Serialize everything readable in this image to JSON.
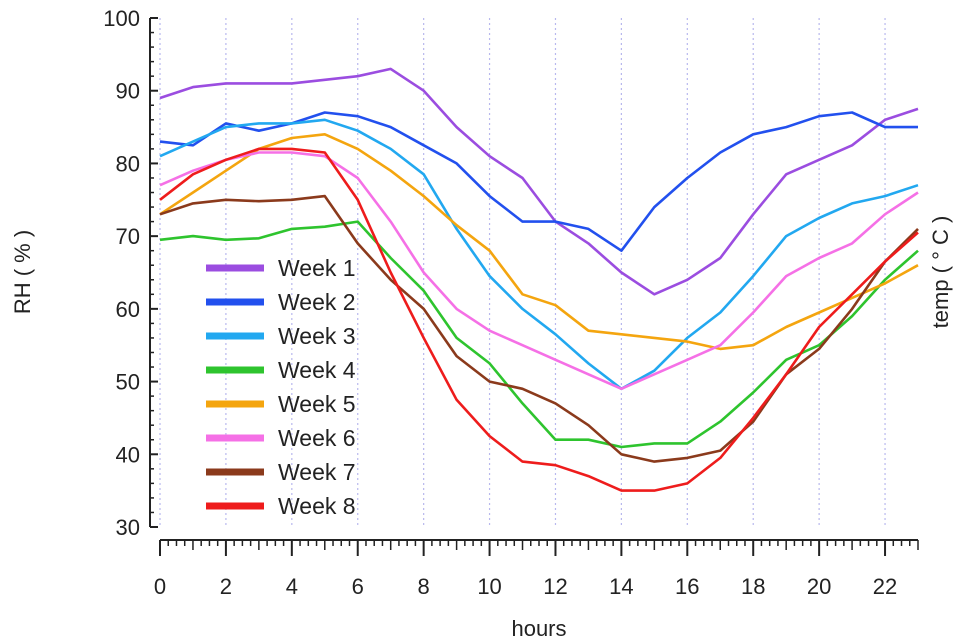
{
  "chart_data": {
    "type": "line",
    "title": "",
    "xlabel": "hours",
    "ylabel": "RH ( % )",
    "y2label": "temp ( ° C )",
    "xlim": [
      0,
      23
    ],
    "ylim": [
      30,
      100
    ],
    "xticks": [
      0,
      2,
      4,
      6,
      8,
      10,
      12,
      14,
      16,
      18,
      20,
      22
    ],
    "yticks": [
      30,
      40,
      50,
      60,
      70,
      80,
      90,
      100
    ],
    "grid": "vertical dotted",
    "legend_position": "bottom-left",
    "x": [
      0,
      1,
      2,
      3,
      4,
      5,
      6,
      7,
      8,
      9,
      10,
      11,
      12,
      13,
      14,
      15,
      16,
      17,
      18,
      19,
      20,
      21,
      22,
      23
    ],
    "series": [
      {
        "name": "Week 1",
        "color": "#9b4de0",
        "values": [
          89,
          90.5,
          91,
          91,
          91,
          91.5,
          92,
          93,
          90,
          85,
          81,
          78,
          72,
          69,
          65,
          62,
          64,
          67,
          73,
          78.5,
          80.5,
          82.5,
          86,
          87.5
        ]
      },
      {
        "name": "Week 2",
        "color": "#2250ee",
        "values": [
          83,
          82.5,
          85.5,
          84.5,
          85.5,
          87,
          86.5,
          85,
          82.5,
          80,
          75.5,
          72,
          72,
          71,
          68,
          74,
          78,
          81.5,
          84,
          85,
          86.5,
          87,
          85,
          85
        ]
      },
      {
        "name": "Week 3",
        "color": "#22a8f0",
        "values": [
          81,
          83,
          85,
          85.5,
          85.5,
          86,
          84.5,
          82,
          78.5,
          71,
          64.5,
          60,
          56.5,
          52.5,
          49,
          51.5,
          56,
          59.5,
          64.5,
          70,
          72.5,
          74.5,
          75.5,
          77
        ]
      },
      {
        "name": "Week 4",
        "color": "#2ec42e",
        "values": [
          69.5,
          70,
          69.5,
          69.7,
          71,
          71.3,
          72,
          67,
          62.5,
          56,
          52.5,
          47,
          42,
          42,
          41,
          41.5,
          41.5,
          44.5,
          48.5,
          53,
          55,
          59,
          64,
          68
        ]
      },
      {
        "name": "Week 5",
        "color": "#f4a50f",
        "values": [
          73,
          76,
          79,
          82,
          83.5,
          84,
          82,
          79,
          75.5,
          71.5,
          68,
          62,
          60.5,
          57,
          56.5,
          56,
          55.5,
          54.5,
          55,
          57.5,
          59.5,
          61.5,
          63.5,
          66
        ]
      },
      {
        "name": "Week 6",
        "color": "#f570e6",
        "values": [
          77,
          79,
          80.5,
          81.5,
          81.5,
          81,
          78,
          72,
          65,
          60,
          57,
          55,
          53,
          51,
          49,
          51,
          53,
          55,
          59.5,
          64.5,
          67,
          69,
          73,
          76
        ]
      },
      {
        "name": "Week 7",
        "color": "#8b3a1c",
        "values": [
          73,
          74.5,
          75,
          74.8,
          75,
          75.5,
          69,
          64,
          60,
          53.5,
          50,
          49,
          47,
          44,
          40,
          39,
          39.5,
          40.5,
          44.5,
          51,
          54.5,
          60,
          66.5,
          71
        ]
      },
      {
        "name": "Week 8",
        "color": "#ee1c1c",
        "values": [
          75,
          78.5,
          80.5,
          82,
          82,
          81.5,
          75,
          65,
          56,
          47.5,
          42.5,
          39,
          38.5,
          37,
          35,
          35,
          36,
          39.5,
          45,
          51,
          57.5,
          62,
          66.5,
          70.5
        ]
      }
    ]
  }
}
